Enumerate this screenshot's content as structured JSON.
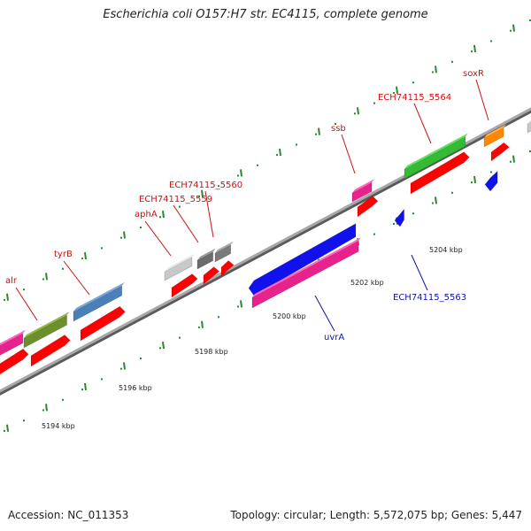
{
  "title": "Escherichia coli O157:H7 str. EC4115, complete genome",
  "footer": {
    "accession": "Accession: NC_011353",
    "topology": "Topology: circular; Length: 5,572,075 bp; Genes: 5,447"
  },
  "colors": {
    "backbone": "#8a8a8a",
    "tick": "#2a8a2a",
    "label_forward": "#cc1111",
    "label_reverse": "#1111aa",
    "cds": "#ff0000"
  },
  "ticks": [
    {
      "label": "5194 kbp"
    },
    {
      "label": "5196 kbp"
    },
    {
      "label": "5198 kbp"
    },
    {
      "label": "5200 kbp"
    },
    {
      "label": "5202 kbp"
    },
    {
      "label": "5204 kbp"
    }
  ],
  "gene_labels": [
    {
      "text": "alr",
      "strand": "forward"
    },
    {
      "text": "tyrB",
      "strand": "forward"
    },
    {
      "text": "aphA",
      "strand": "forward"
    },
    {
      "text": "ECH74115_5559",
      "strand": "forward"
    },
    {
      "text": "ECH74115_5560",
      "strand": "forward"
    },
    {
      "text": "ssb",
      "strand": "forward"
    },
    {
      "text": "ECH74115_5564",
      "strand": "forward"
    },
    {
      "text": "soxR",
      "strand": "forward"
    },
    {
      "text": "uvrA",
      "strand": "reverse"
    },
    {
      "text": "ECH74115_5563",
      "strand": "reverse"
    }
  ]
}
